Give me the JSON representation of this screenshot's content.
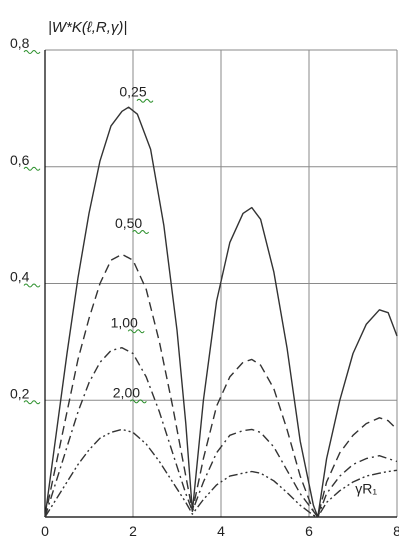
{
  "chart_data": {
    "type": "line",
    "title": "",
    "xlabel": "γR₁",
    "ylabel": "|W*K(ℓ,R,γ)|",
    "xlim": [
      0,
      8
    ],
    "ylim": [
      0,
      0.8
    ],
    "grid": true,
    "legend": "none",
    "x_ticks": [
      "0",
      "2",
      "4",
      "6",
      "8"
    ],
    "y_ticks": [
      "0,2",
      "0,4",
      "0,6",
      "0,8"
    ],
    "series": [
      {
        "name": "0,25",
        "style": "solid",
        "x": [
          0,
          0.25,
          0.5,
          0.75,
          1.0,
          1.25,
          1.5,
          1.75,
          1.9,
          2.1,
          2.4,
          2.7,
          3.0,
          3.2,
          3.35,
          3.6,
          3.9,
          4.2,
          4.5,
          4.7,
          4.9,
          5.2,
          5.5,
          5.8,
          6.1,
          6.2,
          6.4,
          6.7,
          7.0,
          7.3,
          7.6,
          7.8,
          8.0
        ],
        "y": [
          0,
          0.14,
          0.28,
          0.41,
          0.52,
          0.61,
          0.67,
          0.695,
          0.702,
          0.69,
          0.63,
          0.5,
          0.32,
          0.16,
          0.01,
          0.2,
          0.37,
          0.47,
          0.52,
          0.53,
          0.51,
          0.42,
          0.29,
          0.13,
          0.02,
          0.0,
          0.1,
          0.2,
          0.28,
          0.33,
          0.355,
          0.35,
          0.31
        ]
      },
      {
        "name": "0,50",
        "style": "dashed",
        "x": [
          0,
          0.25,
          0.5,
          0.75,
          1.0,
          1.25,
          1.5,
          1.75,
          2.0,
          2.3,
          2.6,
          2.9,
          3.2,
          3.35,
          3.6,
          3.9,
          4.2,
          4.5,
          4.7,
          4.9,
          5.2,
          5.5,
          5.8,
          6.1,
          6.2,
          6.4,
          6.7,
          7.0,
          7.3,
          7.6,
          7.8,
          8.0
        ],
        "y": [
          0,
          0.09,
          0.18,
          0.27,
          0.34,
          0.4,
          0.44,
          0.45,
          0.44,
          0.39,
          0.3,
          0.19,
          0.07,
          0.01,
          0.1,
          0.19,
          0.24,
          0.265,
          0.27,
          0.26,
          0.22,
          0.15,
          0.07,
          0.01,
          0.0,
          0.06,
          0.11,
          0.14,
          0.16,
          0.17,
          0.165,
          0.15
        ]
      },
      {
        "name": "1,00",
        "style": "dash-dot",
        "x": [
          0,
          0.25,
          0.5,
          0.75,
          1.0,
          1.25,
          1.5,
          1.75,
          2.0,
          2.3,
          2.6,
          2.9,
          3.2,
          3.35,
          3.6,
          3.9,
          4.2,
          4.5,
          4.7,
          4.9,
          5.2,
          5.5,
          5.8,
          6.1,
          6.2,
          6.4,
          6.7,
          7.0,
          7.3,
          7.6,
          7.8,
          8.0
        ],
        "y": [
          0,
          0.06,
          0.12,
          0.18,
          0.23,
          0.265,
          0.285,
          0.29,
          0.28,
          0.24,
          0.18,
          0.11,
          0.04,
          0.01,
          0.06,
          0.11,
          0.14,
          0.148,
          0.15,
          0.145,
          0.12,
          0.08,
          0.04,
          0.01,
          0.0,
          0.04,
          0.07,
          0.09,
          0.1,
          0.105,
          0.1,
          0.095
        ]
      },
      {
        "name": "2,00",
        "style": "dash-dot-dot",
        "x": [
          0,
          0.25,
          0.5,
          0.75,
          1.0,
          1.25,
          1.5,
          1.75,
          2.0,
          2.3,
          2.6,
          2.9,
          3.2,
          3.35,
          3.6,
          3.9,
          4.2,
          4.5,
          4.7,
          4.9,
          5.2,
          5.5,
          5.8,
          6.1,
          6.2,
          6.4,
          6.7,
          7.0,
          7.3,
          7.6,
          7.8,
          8.0
        ],
        "y": [
          0,
          0.03,
          0.06,
          0.09,
          0.115,
          0.135,
          0.145,
          0.15,
          0.145,
          0.125,
          0.095,
          0.06,
          0.025,
          0.005,
          0.03,
          0.055,
          0.07,
          0.075,
          0.078,
          0.075,
          0.062,
          0.042,
          0.02,
          0.003,
          0.0,
          0.025,
          0.045,
          0.06,
          0.07,
          0.075,
          0.078,
          0.08
        ]
      }
    ],
    "annotations": [
      {
        "text": "0,25",
        "series": "0,25",
        "at": [
          2.0,
          0.72
        ]
      },
      {
        "text": "0,50",
        "series": "0,50",
        "at": [
          1.9,
          0.495
        ]
      },
      {
        "text": "1,00",
        "series": "1,00",
        "at": [
          1.8,
          0.325
        ]
      },
      {
        "text": "2,00",
        "series": "2,00",
        "at": [
          1.85,
          0.205
        ]
      },
      {
        "text": "γR₁",
        "at": [
          7.3,
          0.04
        ]
      }
    ]
  },
  "colors": {
    "background": "#ffffff",
    "grid": "#8a8a8a",
    "axis": "#000000",
    "series": "#333333",
    "tick_underline": "#2a8f2a"
  }
}
